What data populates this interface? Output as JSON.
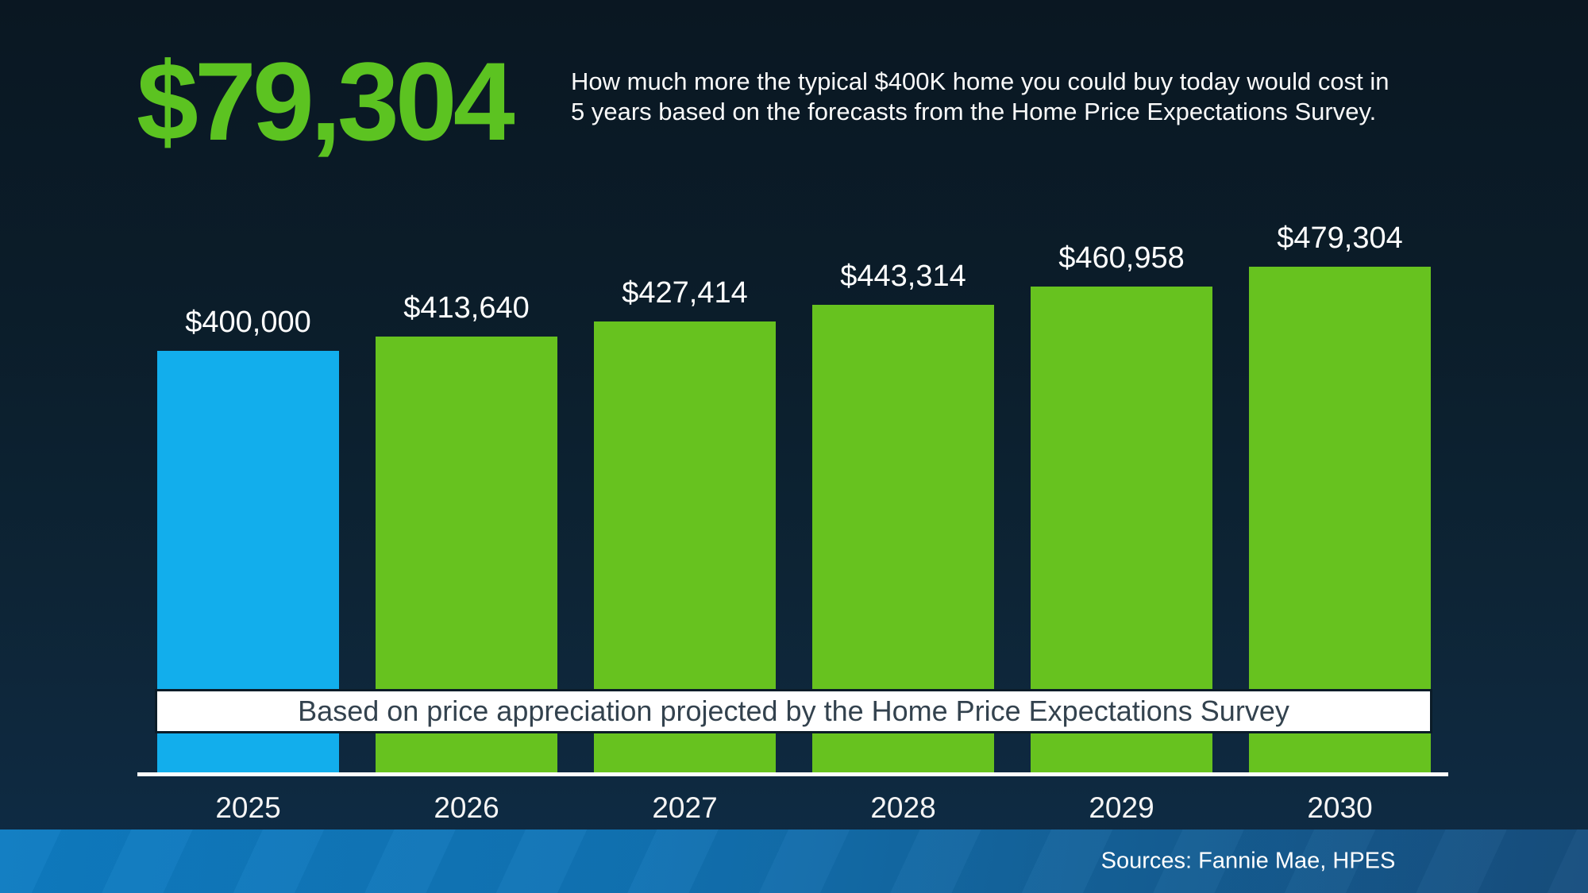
{
  "header": {
    "amount": "$79,304",
    "description_lines": [
      "How much more the typical $400K home you could buy today would cost in",
      "5 years based on the forecasts from the Home Price Expectations Survey."
    ]
  },
  "chart_data": {
    "type": "bar",
    "categories": [
      "2025",
      "2026",
      "2027",
      "2028",
      "2029",
      "2030"
    ],
    "values": [
      400000,
      413640,
      427414,
      443314,
      460958,
      479304
    ],
    "value_labels": [
      "$400,000",
      "$413,640",
      "$427,414",
      "$443,314",
      "$460,958",
      "$479,304"
    ],
    "bar_colors": [
      "#12aeec",
      "#67c21f",
      "#67c21f",
      "#67c21f",
      "#67c21f",
      "#67c21f"
    ],
    "annotation": "Based on price appreciation projected by the Home Price Expectations Survey",
    "title": "",
    "xlabel": "",
    "ylabel": "",
    "ylim": [
      0,
      480000
    ],
    "grid": false,
    "legend": false
  },
  "footer": {
    "sources": "Sources: Fannie Mae, HPES"
  },
  "colors": {
    "accent_green": "#5cc321",
    "accent_blue": "#12aeec",
    "background_top": "#0a1722",
    "background_bottom": "#0f2c46",
    "footer_blue_left": "#0e7cc2",
    "footer_blue_right": "#174e7e",
    "banner_text": "#33424e"
  }
}
